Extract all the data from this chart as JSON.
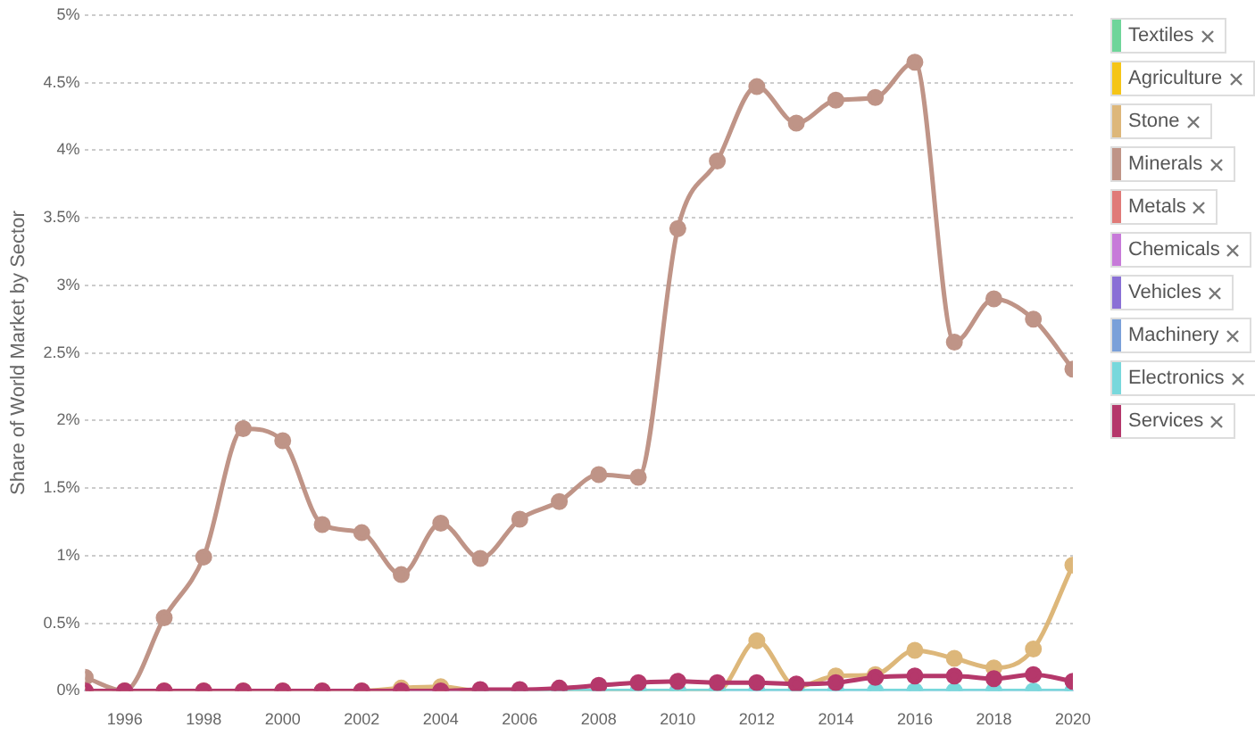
{
  "chart_data": {
    "type": "line",
    "ylabel": "Share of World Market by Sector",
    "x": [
      1995,
      1996,
      1997,
      1998,
      1999,
      2000,
      2001,
      2002,
      2003,
      2004,
      2005,
      2006,
      2007,
      2008,
      2009,
      2010,
      2011,
      2012,
      2013,
      2014,
      2015,
      2016,
      2017,
      2018,
      2019,
      2020
    ],
    "series": [
      {
        "name": "Textiles",
        "color": "#6fd59a",
        "values": [
          null,
          null,
          null,
          null,
          null,
          null,
          null,
          null,
          null,
          null,
          null,
          null,
          null,
          null,
          null,
          null,
          null,
          null,
          null,
          null,
          null,
          null,
          null,
          null,
          null,
          null
        ]
      },
      {
        "name": "Agriculture",
        "color": "#f5c518",
        "values": [
          null,
          null,
          null,
          null,
          null,
          null,
          null,
          null,
          null,
          null,
          null,
          null,
          null,
          null,
          null,
          null,
          null,
          null,
          null,
          null,
          null,
          null,
          null,
          null,
          null,
          null
        ]
      },
      {
        "name": "Stone",
        "color": "#ddb77a",
        "values": [
          0,
          0,
          0,
          0,
          0,
          0,
          0,
          0,
          0.02,
          0.03,
          0,
          0,
          0,
          0,
          0,
          0,
          0,
          0.37,
          0.03,
          0.11,
          0.12,
          0.3,
          0.24,
          0.17,
          0.31,
          0.93
        ]
      },
      {
        "name": "Minerals",
        "color": "#bf9487",
        "values": [
          0.1,
          0,
          0.54,
          0.99,
          1.94,
          1.85,
          1.23,
          1.17,
          0.86,
          1.24,
          0.98,
          1.27,
          1.4,
          1.6,
          1.58,
          3.42,
          3.92,
          4.47,
          4.2,
          4.37,
          4.39,
          4.65,
          2.58,
          2.9,
          2.75,
          2.38
        ]
      },
      {
        "name": "Metals",
        "color": "#e07a78",
        "values": [
          null,
          null,
          null,
          null,
          null,
          null,
          null,
          null,
          null,
          null,
          null,
          null,
          null,
          null,
          null,
          null,
          null,
          null,
          null,
          null,
          null,
          null,
          null,
          null,
          null,
          null
        ]
      },
      {
        "name": "Chemicals",
        "color": "#c77ad9",
        "values": [
          null,
          null,
          null,
          null,
          null,
          null,
          null,
          null,
          null,
          null,
          null,
          null,
          null,
          null,
          null,
          null,
          null,
          null,
          null,
          null,
          null,
          null,
          null,
          null,
          null,
          null
        ]
      },
      {
        "name": "Vehicles",
        "color": "#8a70d6",
        "values": [
          null,
          null,
          null,
          null,
          null,
          null,
          null,
          null,
          null,
          null,
          null,
          null,
          null,
          null,
          null,
          null,
          null,
          null,
          null,
          null,
          null,
          null,
          null,
          null,
          null,
          null
        ]
      },
      {
        "name": "Machinery",
        "color": "#7aa0d9",
        "values": [
          null,
          null,
          null,
          null,
          null,
          null,
          null,
          null,
          null,
          null,
          null,
          null,
          null,
          null,
          null,
          null,
          null,
          null,
          null,
          null,
          null,
          null,
          null,
          null,
          null,
          null
        ]
      },
      {
        "name": "Electronics",
        "color": "#78d8dc",
        "values": [
          null,
          null,
          null,
          null,
          null,
          null,
          null,
          null,
          null,
          null,
          0,
          0,
          0,
          0,
          0,
          0,
          0,
          0,
          0,
          0,
          0,
          0,
          0,
          0,
          0,
          0
        ]
      },
      {
        "name": "Services",
        "color": "#b5386b",
        "values": [
          0,
          0,
          0,
          0,
          0,
          0,
          0,
          0,
          0,
          0,
          0.01,
          0.01,
          0.02,
          0.04,
          0.06,
          0.07,
          0.06,
          0.06,
          0.05,
          0.06,
          0.1,
          0.11,
          0.11,
          0.09,
          0.12,
          0.07
        ]
      }
    ],
    "xlim": [
      1995,
      2020
    ],
    "xticks": [
      1996,
      1998,
      2000,
      2002,
      2004,
      2006,
      2008,
      2010,
      2012,
      2014,
      2016,
      2018,
      2020
    ],
    "ylim": [
      0,
      5
    ],
    "yticks": [
      {
        "value": 0,
        "label": "0%"
      },
      {
        "value": 0.5,
        "label": "0.5%"
      },
      {
        "value": 1,
        "label": "1%"
      },
      {
        "value": 1.5,
        "label": "1.5%"
      },
      {
        "value": 2,
        "label": "2%"
      },
      {
        "value": 2.5,
        "label": "2.5%"
      },
      {
        "value": 3,
        "label": "3%"
      },
      {
        "value": 3.5,
        "label": "3.5%"
      },
      {
        "value": 4,
        "label": "4%"
      },
      {
        "value": 4.5,
        "label": "4.5%"
      },
      {
        "value": 5,
        "label": "5%"
      }
    ],
    "grid": "y",
    "legend": "right",
    "marker": "circle",
    "line_style": "solid"
  }
}
